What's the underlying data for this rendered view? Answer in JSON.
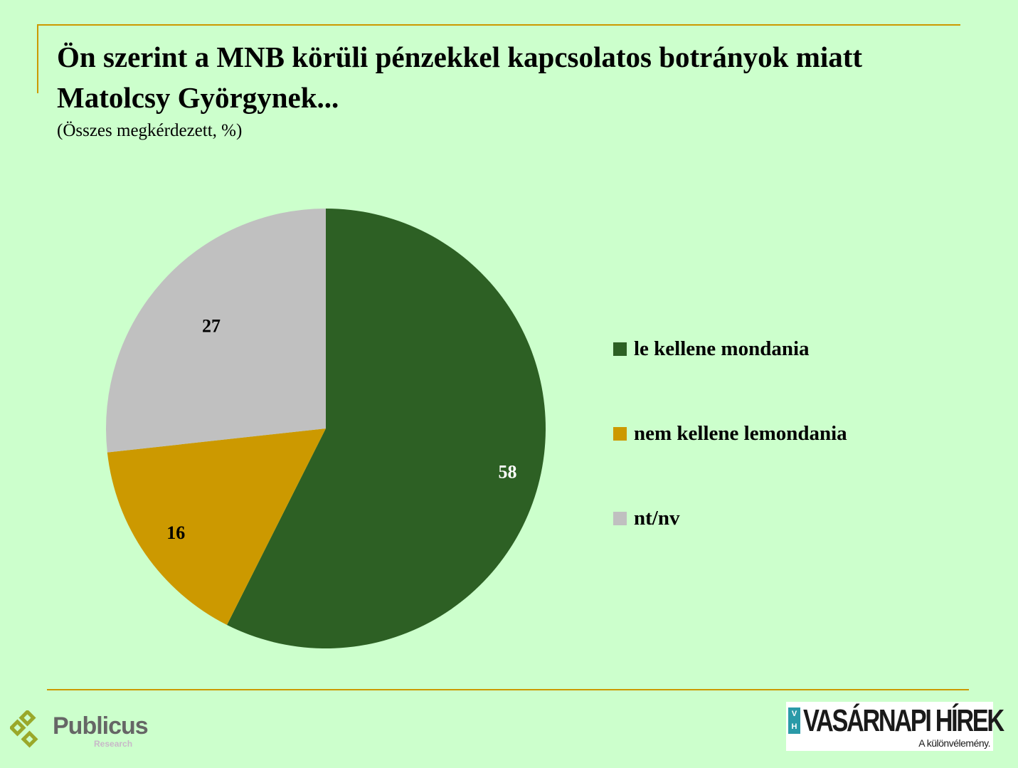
{
  "chart_data": {
    "type": "pie",
    "title": "Ön szerint a MNB körüli pénzekkel kapcsolatos botrányok miatt Matolcsy Györgynek...",
    "subtitle": "(Összes megkérdezett, %)",
    "categories": [
      "le kellene mondania",
      "nem kellene lemondania",
      "nt/nv"
    ],
    "values": [
      58,
      16,
      27
    ],
    "labels": [
      "58",
      "16",
      "27"
    ],
    "colors": [
      "#2d6024",
      "#cc9900",
      "#c0c0c0"
    ],
    "label_colors": [
      "#ffffff",
      "#000000",
      "#000000"
    ],
    "legend_position": "right"
  },
  "logos": {
    "publicus": {
      "name": "Publicus",
      "sub": "Research"
    },
    "vh": {
      "badge": "V H",
      "name": "VASÁRNAPI HÍREK",
      "tagline": "A különvélemény."
    }
  }
}
